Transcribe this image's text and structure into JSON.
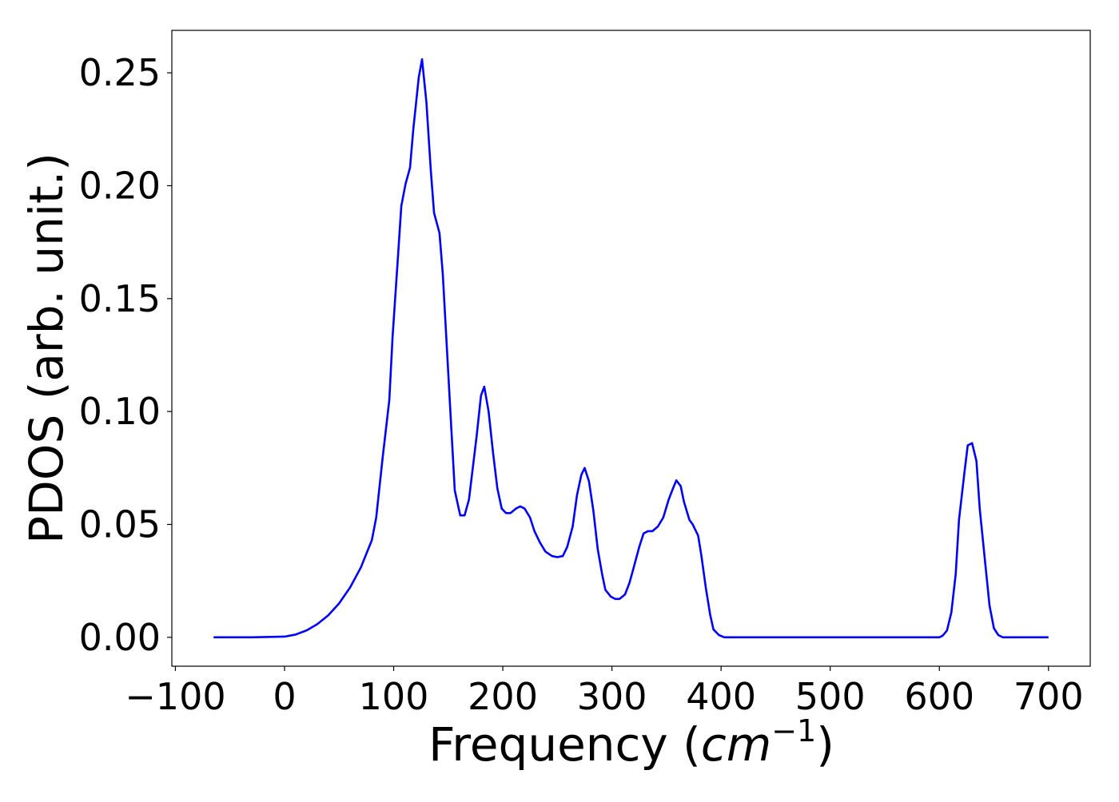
{
  "chart_data": {
    "type": "line",
    "xlabel_parts": [
      "Frequency (",
      "cm",
      "−1",
      ")"
    ],
    "ylabel": "PDOS (arb. unit.)",
    "xlim": [
      -103.25,
      738.25
    ],
    "ylim": [
      -0.0128,
      0.2688
    ],
    "xticks": [
      {
        "value": -100,
        "label": "−100"
      },
      0,
      100,
      200,
      300,
      400,
      500,
      600,
      700
    ],
    "yticks": [
      {
        "value": 0,
        "label": "0.00"
      },
      {
        "value": 0.05,
        "label": "0.05"
      },
      {
        "value": 0.1,
        "label": "0.10"
      },
      {
        "value": 0.15,
        "label": "0.15"
      },
      {
        "value": 0.2,
        "label": "0.20"
      },
      {
        "value": 0.25,
        "label": "0.25"
      }
    ],
    "x": [
      -65,
      -30,
      0,
      10,
      20,
      30,
      40,
      50,
      60,
      70,
      80,
      84,
      90,
      96,
      99,
      104,
      107,
      111,
      115,
      118,
      123,
      126,
      130,
      134,
      137,
      142,
      145,
      149,
      153,
      156,
      161,
      165,
      169,
      172,
      176,
      180,
      183,
      187,
      191,
      195,
      199,
      203,
      207,
      212,
      216,
      220,
      225,
      229,
      234,
      239,
      245,
      250,
      255,
      259,
      264,
      268,
      272,
      275,
      279,
      283,
      287,
      291,
      294,
      299,
      303,
      307,
      312,
      316,
      320,
      325,
      329,
      333,
      337,
      342,
      347,
      352,
      356,
      359,
      363,
      366,
      371,
      374,
      379,
      382,
      386,
      390,
      393,
      398,
      403,
      600,
      603,
      607,
      611,
      615,
      618,
      623,
      626,
      630,
      634,
      637,
      642,
      646,
      650,
      654,
      658,
      700
    ],
    "series": [
      {
        "color": "#0000ff",
        "values": [
          0,
          0,
          0.0003,
          0.0012,
          0.003,
          0.0058,
          0.0097,
          0.015,
          0.022,
          0.031,
          0.043,
          0.053,
          0.08,
          0.105,
          0.133,
          0.169,
          0.191,
          0.201,
          0.208,
          0.225,
          0.248,
          0.256,
          0.237,
          0.207,
          0.188,
          0.179,
          0.161,
          0.126,
          0.091,
          0.065,
          0.054,
          0.054,
          0.061,
          0.073,
          0.089,
          0.107,
          0.111,
          0.1,
          0.082,
          0.066,
          0.057,
          0.055,
          0.055,
          0.057,
          0.058,
          0.057,
          0.053,
          0.047,
          0.042,
          0.038,
          0.036,
          0.0355,
          0.036,
          0.04,
          0.049,
          0.063,
          0.072,
          0.075,
          0.069,
          0.056,
          0.039,
          0.028,
          0.021,
          0.018,
          0.017,
          0.017,
          0.019,
          0.024,
          0.031,
          0.04,
          0.046,
          0.047,
          0.047,
          0.049,
          0.053,
          0.061,
          0.066,
          0.0695,
          0.067,
          0.06,
          0.052,
          0.05,
          0.045,
          0.036,
          0.022,
          0.01,
          0.0035,
          0.001,
          0,
          0,
          0.0007,
          0.003,
          0.011,
          0.028,
          0.052,
          0.073,
          0.085,
          0.086,
          0.078,
          0.057,
          0.033,
          0.014,
          0.004,
          0.001,
          0,
          0
        ]
      }
    ]
  }
}
